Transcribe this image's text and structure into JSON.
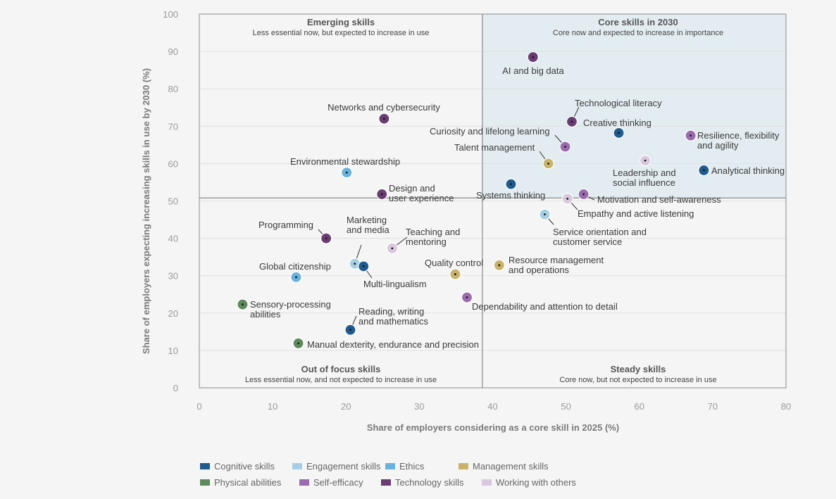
{
  "chart_data": {
    "type": "scatter",
    "xlabel": "Share of employers considering as a core skill in 2025 (%)",
    "ylabel": "Share of employers expecting increasing skills in use by 2030 (%)",
    "xlim": [
      0,
      80
    ],
    "ylim": [
      0,
      100
    ],
    "xticks": [
      0,
      10,
      20,
      30,
      40,
      50,
      60,
      70,
      80
    ],
    "yticks": [
      0,
      10,
      20,
      30,
      40,
      50,
      60,
      70,
      80,
      90,
      100
    ],
    "grid": "horizontal",
    "divider": {
      "x": 38.6,
      "y": 50.8
    },
    "quadrants": [
      {
        "id": "top-left",
        "title": "Emerging skills",
        "subtitle": "Less essential now, but expected to increase in use"
      },
      {
        "id": "top-right",
        "title": "Core skills in 2030",
        "subtitle": "Core now and expected to increase in importance"
      },
      {
        "id": "bottom-left",
        "title": "Out of focus skills",
        "subtitle": "Less essential now, and not expected to increase in use"
      },
      {
        "id": "bottom-right",
        "title": "Steady skills",
        "subtitle": "Core now, but not expected to increase in use"
      }
    ],
    "categories": [
      {
        "name": "Cognitive skills",
        "color": "#1f5b8e"
      },
      {
        "name": "Engagement skills",
        "color": "#a6cfe6"
      },
      {
        "name": "Ethics",
        "color": "#6ab2de"
      },
      {
        "name": "Management skills",
        "color": "#c9b36a"
      },
      {
        "name": "Physical abilities",
        "color": "#5c8a5a"
      },
      {
        "name": "Self-efficacy",
        "color": "#9b6aaf"
      },
      {
        "name": "Technology skills",
        "color": "#6a3d72"
      },
      {
        "name": "Working with others",
        "color": "#d9c8dd"
      }
    ],
    "points": [
      {
        "label": "AI and big data",
        "x": 45.5,
        "y": 88.5,
        "category": "Technology skills"
      },
      {
        "label": "Networks and cybersecurity",
        "x": 25.2,
        "y": 72.0,
        "category": "Technology skills"
      },
      {
        "label": "Technological literacy",
        "x": 50.8,
        "y": 71.2,
        "category": "Technology skills"
      },
      {
        "label": "Creative thinking",
        "x": 57.2,
        "y": 68.2,
        "category": "Cognitive skills"
      },
      {
        "label": "Resilience, flexibility\nand agility",
        "x": 67.0,
        "y": 67.5,
        "category": "Self-efficacy"
      },
      {
        "label": "Curiosity and lifelong learning",
        "x": 49.9,
        "y": 64.5,
        "category": "Self-efficacy"
      },
      {
        "label": "Talent management",
        "x": 47.6,
        "y": 60.0,
        "category": "Management skills"
      },
      {
        "label": "Leadership and\nsocial influence",
        "x": 60.8,
        "y": 60.8,
        "category": "Working with others"
      },
      {
        "label": "Analytical thinking",
        "x": 68.8,
        "y": 58.2,
        "category": "Cognitive skills"
      },
      {
        "label": "Environmental stewardship",
        "x": 20.1,
        "y": 57.6,
        "category": "Ethics"
      },
      {
        "label": "Systems thinking",
        "x": 42.5,
        "y": 54.5,
        "category": "Cognitive skills"
      },
      {
        "label": "Design and\nuser experience",
        "x": 24.9,
        "y": 51.8,
        "category": "Technology skills"
      },
      {
        "label": "Motivation and self-awareness",
        "x": 52.4,
        "y": 51.8,
        "category": "Self-efficacy"
      },
      {
        "label": "Empathy and active listening",
        "x": 50.2,
        "y": 50.6,
        "category": "Working with others"
      },
      {
        "label": "Service orientation and\ncustomer service",
        "x": 47.1,
        "y": 46.4,
        "category": "Engagement skills"
      },
      {
        "label": "Programming",
        "x": 17.3,
        "y": 40.0,
        "category": "Technology skills"
      },
      {
        "label": "Teaching and\nmentoring",
        "x": 26.3,
        "y": 37.3,
        "category": "Working with others"
      },
      {
        "label": "Marketing\nand media",
        "x": 21.2,
        "y": 33.2,
        "category": "Engagement skills"
      },
      {
        "label": "Multi-lingualism",
        "x": 22.4,
        "y": 32.5,
        "category": "Cognitive skills"
      },
      {
        "label": "Quality control",
        "x": 34.9,
        "y": 30.4,
        "category": "Management skills"
      },
      {
        "label": "Resource management\nand operations",
        "x": 40.9,
        "y": 32.8,
        "category": "Management skills"
      },
      {
        "label": "Global citizenship",
        "x": 13.2,
        "y": 29.6,
        "category": "Ethics"
      },
      {
        "label": "Dependability and attention to detail",
        "x": 36.5,
        "y": 24.2,
        "category": "Self-efficacy"
      },
      {
        "label": "Sensory-processing\nabilities",
        "x": 5.9,
        "y": 22.3,
        "category": "Physical abilities"
      },
      {
        "label": "Reading, writing\nand mathematics",
        "x": 20.6,
        "y": 15.5,
        "category": "Cognitive skills"
      },
      {
        "label": "Manual dexterity, endurance and precision",
        "x": 13.5,
        "y": 11.9,
        "category": "Physical abilities"
      }
    ]
  }
}
